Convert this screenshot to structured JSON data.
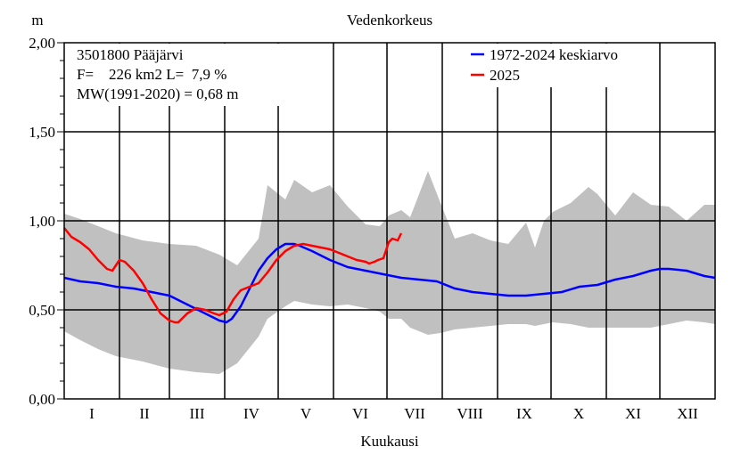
{
  "chart_data": {
    "type": "line",
    "title": "Vedenkorkeus",
    "ylabel": "m",
    "xlabel": "Kuukausi",
    "ylim": [
      0,
      2
    ],
    "yticks": [
      0,
      0.5,
      1,
      1.5,
      2
    ],
    "ytick_labels": [
      "0,00",
      "0,50",
      "1,00",
      "1,50",
      "2,00"
    ],
    "x_unit": "day of year",
    "xlim": [
      1,
      366
    ],
    "month_labels": [
      "I",
      "II",
      "III",
      "IV",
      "V",
      "VI",
      "VII",
      "VIII",
      "IX",
      "X",
      "XI",
      "XII"
    ],
    "grid": true,
    "legend_position": "top-right",
    "info_lines": [
      "3501800 Pääjärvi",
      "F=    226 km2 L=  7,9 %",
      "MW(1991-2020) = 0,68 m"
    ],
    "band": {
      "x": [
        1,
        10,
        20,
        30,
        45,
        60,
        75,
        88,
        98,
        110,
        115,
        125,
        130,
        140,
        150,
        160,
        170,
        178,
        183,
        190,
        195,
        205,
        212,
        220,
        230,
        240,
        250,
        260,
        265,
        270,
        275,
        285,
        295,
        300,
        310,
        320,
        330,
        340,
        350,
        360,
        366
      ],
      "upper": [
        1.04,
        1.01,
        0.97,
        0.93,
        0.89,
        0.87,
        0.86,
        0.81,
        0.75,
        0.9,
        1.2,
        1.12,
        1.23,
        1.16,
        1.2,
        1.08,
        0.98,
        0.97,
        1.03,
        1.06,
        1.02,
        1.28,
        1.1,
        0.9,
        0.93,
        0.89,
        0.87,
        0.99,
        0.85,
        1.0,
        1.05,
        1.1,
        1.19,
        1.15,
        1.03,
        1.16,
        1.09,
        1.08,
        1.0,
        1.09,
        1.09
      ],
      "lower": [
        0.38,
        0.33,
        0.28,
        0.24,
        0.21,
        0.17,
        0.15,
        0.14,
        0.2,
        0.35,
        0.45,
        0.52,
        0.55,
        0.53,
        0.52,
        0.53,
        0.51,
        0.49,
        0.45,
        0.45,
        0.4,
        0.36,
        0.37,
        0.39,
        0.4,
        0.41,
        0.42,
        0.42,
        0.41,
        0.42,
        0.43,
        0.42,
        0.4,
        0.4,
        0.4,
        0.4,
        0.4,
        0.42,
        0.44,
        0.43,
        0.42
      ]
    },
    "series": [
      {
        "name": "1972-2024 keskiarvo",
        "color": "#0000ff",
        "x": [
          1,
          10,
          20,
          30,
          40,
          50,
          60,
          70,
          80,
          88,
          92,
          95,
          100,
          105,
          110,
          115,
          120,
          125,
          130,
          133,
          140,
          150,
          160,
          170,
          180,
          190,
          200,
          210,
          220,
          230,
          240,
          250,
          260,
          270,
          280,
          290,
          300,
          310,
          320,
          330,
          335,
          340,
          350,
          360,
          366
        ],
        "y": [
          0.68,
          0.66,
          0.65,
          0.63,
          0.62,
          0.6,
          0.58,
          0.53,
          0.48,
          0.44,
          0.43,
          0.45,
          0.52,
          0.62,
          0.72,
          0.79,
          0.84,
          0.87,
          0.87,
          0.86,
          0.83,
          0.78,
          0.74,
          0.72,
          0.7,
          0.68,
          0.67,
          0.66,
          0.62,
          0.6,
          0.59,
          0.58,
          0.58,
          0.59,
          0.6,
          0.63,
          0.64,
          0.67,
          0.69,
          0.72,
          0.73,
          0.73,
          0.72,
          0.69,
          0.68
        ]
      },
      {
        "name": "2025",
        "color": "#ff0000",
        "x": [
          1,
          5,
          10,
          15,
          20,
          25,
          28,
          30,
          32,
          35,
          40,
          45,
          50,
          55,
          60,
          63,
          65,
          68,
          70,
          75,
          80,
          85,
          88,
          92,
          96,
          100,
          105,
          110,
          115,
          120,
          125,
          130,
          135,
          140,
          145,
          150,
          155,
          160,
          165,
          170,
          172,
          175,
          177,
          180,
          183,
          185,
          188,
          190
        ],
        "y": [
          0.96,
          0.91,
          0.88,
          0.84,
          0.78,
          0.73,
          0.72,
          0.75,
          0.78,
          0.77,
          0.72,
          0.65,
          0.56,
          0.48,
          0.44,
          0.43,
          0.43,
          0.46,
          0.48,
          0.51,
          0.5,
          0.48,
          0.47,
          0.49,
          0.56,
          0.61,
          0.63,
          0.65,
          0.71,
          0.78,
          0.83,
          0.86,
          0.87,
          0.86,
          0.85,
          0.84,
          0.82,
          0.8,
          0.78,
          0.77,
          0.76,
          0.77,
          0.78,
          0.79,
          0.88,
          0.9,
          0.89,
          0.93
        ]
      }
    ]
  }
}
